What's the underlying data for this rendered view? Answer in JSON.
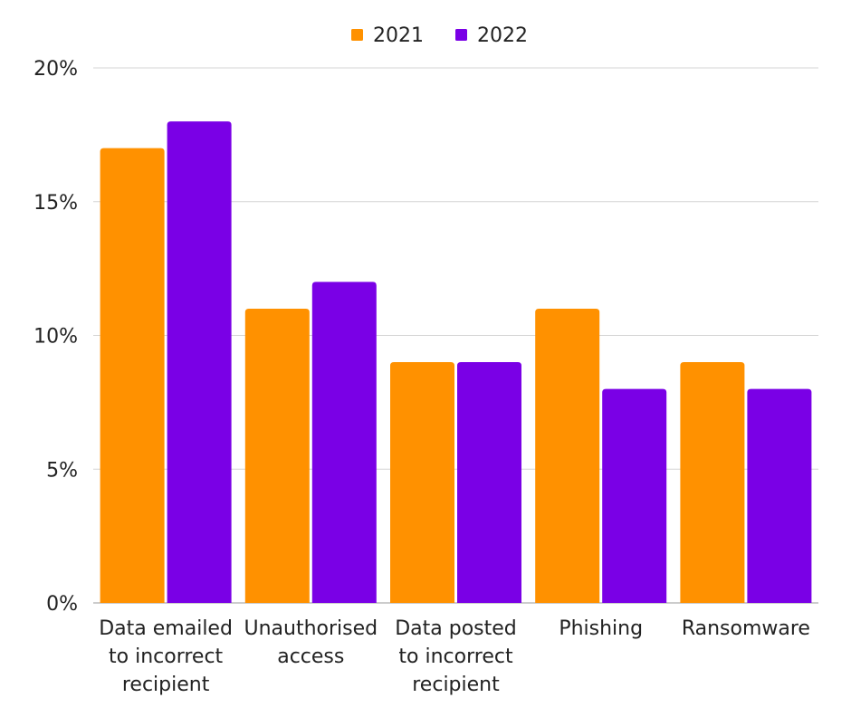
{
  "chart_data": {
    "type": "bar",
    "title": "",
    "xlabel": "",
    "ylabel": "",
    "categories": [
      [
        "Data emailed",
        "to incorrect",
        "recipient"
      ],
      [
        "Unauthorised",
        "access"
      ],
      [
        "Data posted",
        "to incorrect",
        "recipient"
      ],
      [
        "Phishing"
      ],
      [
        "Ransomware"
      ]
    ],
    "series": [
      {
        "name": "2021",
        "color": "#FF9100",
        "values": [
          17,
          11,
          9,
          11,
          9
        ]
      },
      {
        "name": "2022",
        "color": "#7A00E6",
        "values": [
          18,
          12,
          9,
          8,
          8
        ]
      }
    ],
    "ylim": [
      0,
      20
    ],
    "yticks": [
      0,
      5,
      10,
      15,
      20
    ],
    "ytick_labels": [
      "0%",
      "5%",
      "10%",
      "15%",
      "20%"
    ],
    "grid": true,
    "legend_position": "top-center"
  }
}
